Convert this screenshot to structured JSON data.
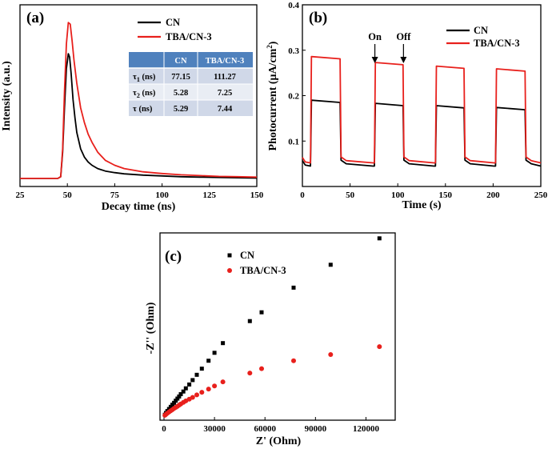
{
  "chart_data": [
    {
      "type": "line",
      "panel_label": "(a)",
      "xlabel": "Decay time (ns)",
      "ylabel": "Intensity (a.u.)",
      "xlim": [
        25,
        150
      ],
      "ylim": [
        0,
        1.0
      ],
      "xticks": [
        "25",
        "50",
        "75",
        "100",
        "125",
        "150"
      ],
      "legend": [
        "CN",
        "TBA/CN-3"
      ],
      "series": [
        {
          "name": "CN",
          "color": "#000000",
          "x": [
            25,
            45,
            46.5,
            47.5,
            48.5,
            49.5,
            50.5,
            51.2,
            52,
            53,
            54,
            55,
            57,
            59,
            61,
            63,
            66,
            70,
            75,
            80,
            90,
            100,
            110,
            120,
            130,
            140,
            150
          ],
          "y": [
            0.02,
            0.02,
            0.03,
            0.18,
            0.45,
            0.69,
            0.78,
            0.76,
            0.66,
            0.5,
            0.39,
            0.3,
            0.2,
            0.15,
            0.12,
            0.1,
            0.08,
            0.065,
            0.055,
            0.048,
            0.04,
            0.035,
            0.03,
            0.028,
            0.026,
            0.024,
            0.022
          ]
        },
        {
          "name": "TBA/CN-3",
          "color": "#e8201c",
          "x": [
            25,
            45,
            46.5,
            47.5,
            48.5,
            49.5,
            50.5,
            51.5,
            52.5,
            53.5,
            55,
            57,
            59,
            61,
            63,
            66,
            70,
            75,
            80,
            90,
            100,
            110,
            120,
            130,
            140,
            150
          ],
          "y": [
            0.02,
            0.02,
            0.03,
            0.2,
            0.55,
            0.84,
            0.97,
            0.96,
            0.86,
            0.74,
            0.6,
            0.45,
            0.36,
            0.29,
            0.24,
            0.18,
            0.13,
            0.1,
            0.08,
            0.06,
            0.05,
            0.042,
            0.037,
            0.032,
            0.03,
            0.028
          ]
        }
      ],
      "table": {
        "header": [
          "",
          "CN",
          "TBA/CN-3"
        ],
        "rows": [
          {
            "sym": "τ",
            "sub": "1",
            "unit": " (ns)",
            "cn": "77.15",
            "tba": "111.27"
          },
          {
            "sym": "τ",
            "sub": "2",
            "unit": " (ns)",
            "cn": "5.28",
            "tba": "7.25"
          },
          {
            "sym": "τ",
            "sub": "",
            "unit": " (ns)",
            "cn": "5.29",
            "tba": "7.44"
          }
        ]
      }
    },
    {
      "type": "line",
      "panel_label": "(b)",
      "xlabel": "Time (s)",
      "ylabel_prefix": "Photocurrent (μA/cm",
      "ylabel_sup": "2",
      "ylabel_suffix": ")",
      "xlim": [
        0,
        250
      ],
      "ylim": [
        0.0,
        0.4
      ],
      "xticks": [
        "0",
        "50",
        "100",
        "150",
        "200",
        "250"
      ],
      "yticks": [
        "0.1",
        "0.2",
        "0.3",
        "0.4"
      ],
      "legend": [
        "CN",
        "TBA/CN-3"
      ],
      "annotations": [
        {
          "text": "On",
          "x": 76
        },
        {
          "text": "Off",
          "x": 106
        }
      ],
      "on_intervals": [
        [
          9,
          40
        ],
        [
          76,
          106
        ],
        [
          140,
          170
        ],
        [
          203,
          234
        ]
      ],
      "series": [
        {
          "name": "CN",
          "color": "#000000",
          "off_level": 0.045,
          "on_level": [
            0.188,
            0.181,
            0.176,
            0.172
          ]
        },
        {
          "name": "TBA/CN-3",
          "color": "#e8201c",
          "off_level": 0.052,
          "on_level": [
            0.284,
            0.271,
            0.263,
            0.257
          ]
        }
      ]
    },
    {
      "type": "scatter",
      "panel_label": "(c)",
      "xlabel": "Z' (Ohm)",
      "ylabel": "-Z'' (Ohm)",
      "xlim": [
        0,
        135000
      ],
      "ylim": [
        0,
        100000
      ],
      "xticks": [
        "0",
        "30000",
        "60000",
        "90000",
        "120000"
      ],
      "legend": [
        "CN",
        "TBA/CN-3"
      ],
      "series": [
        {
          "name": "CN",
          "color": "#000000",
          "marker": "square",
          "x": [
            500,
            1200,
            2000,
            3000,
            4000,
            5000,
            6000,
            7000,
            8000,
            9000,
            10000,
            11500,
            13000,
            15000,
            17000,
            19500,
            22500,
            26500,
            30000,
            35000,
            51000,
            58000,
            77000,
            99000,
            128000
          ],
          "y": [
            800,
            1800,
            2900,
            4100,
            5300,
            6500,
            7600,
            8800,
            10000,
            11200,
            12500,
            14000,
            15800,
            18000,
            20500,
            23500,
            27000,
            31500,
            36000,
            41500,
            54000,
            59000,
            73000,
            86000,
            101000
          ]
        },
        {
          "name": "TBA/CN-3",
          "color": "#e8201c",
          "marker": "circle",
          "x": [
            500,
            1200,
            2000,
            3000,
            4000,
            5000,
            6000,
            7000,
            8000,
            9000,
            10000,
            11500,
            13000,
            15000,
            17000,
            19500,
            22500,
            26500,
            30000,
            35000,
            51000,
            58000,
            77000,
            99000,
            128000
          ],
          "y": [
            500,
            1100,
            1700,
            2400,
            3100,
            3700,
            4400,
            5000,
            5600,
            6300,
            6900,
            7800,
            8700,
            9700,
            10700,
            12100,
            13600,
            15400,
            17200,
            19500,
            24500,
            27000,
            31500,
            35000,
            39500
          ]
        }
      ]
    }
  ]
}
